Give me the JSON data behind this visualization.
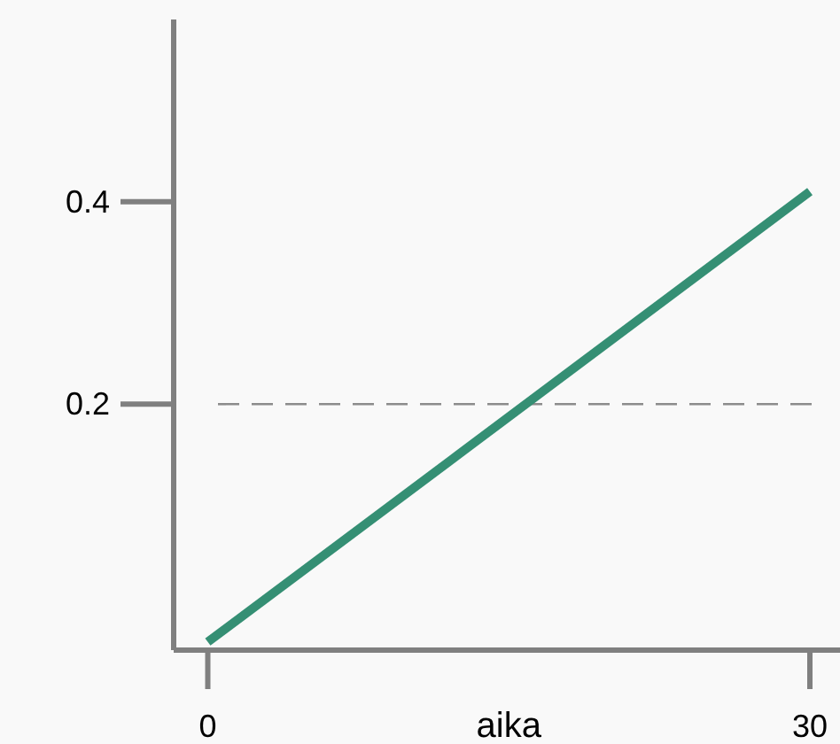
{
  "chart_data": {
    "type": "line",
    "xlabel": "aika",
    "x": [
      0,
      30
    ],
    "series": [
      {
        "color": "#358f74",
        "values": [
          -0.035,
          0.41
        ]
      }
    ],
    "xlim": [
      -1.7,
      31.5
    ],
    "ylim": [
      -0.043,
      0.58
    ],
    "xticks": [
      0,
      30
    ],
    "yticks": [
      0.2,
      0.4
    ],
    "ref_lines": [
      {
        "axis": "y",
        "value": 0.2,
        "color": "#8c8c8c",
        "line_style": "dashed"
      }
    ],
    "grid": false,
    "marker": "none",
    "line_style": "solid"
  }
}
